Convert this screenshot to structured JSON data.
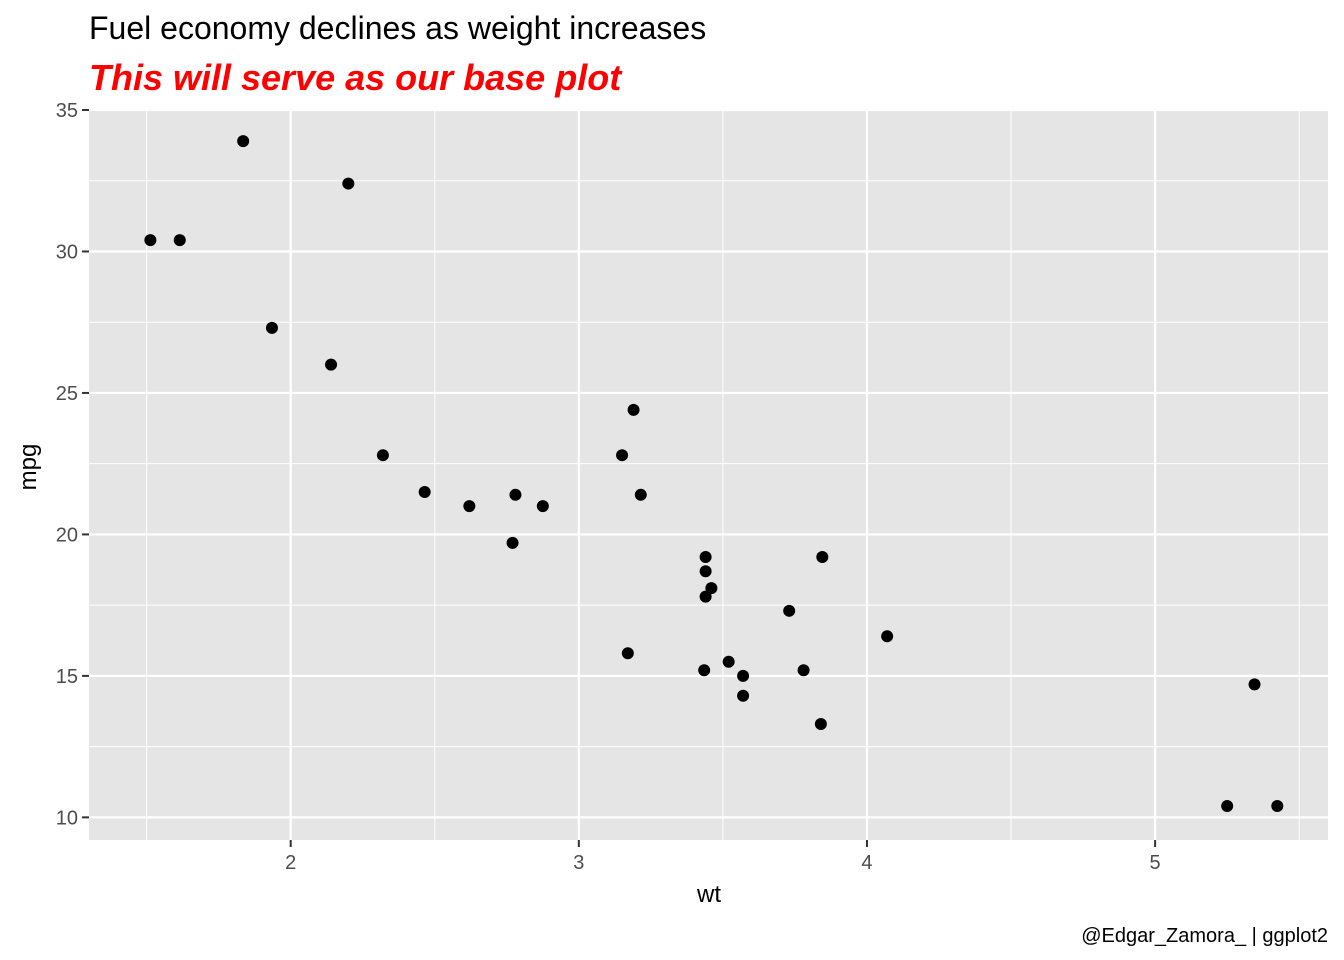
{
  "chart_data": {
    "type": "scatter",
    "title": "Fuel economy declines as weight increases",
    "subtitle": "This will serve as our base plot",
    "caption": "@Edgar_Zamora_ | ggplot2",
    "xlabel": "wt",
    "ylabel": "mpg",
    "xlim": [
      1.3,
      5.6
    ],
    "ylim": [
      9.2,
      35
    ],
    "x_ticks": [
      2,
      3,
      4,
      5
    ],
    "y_ticks": [
      10,
      15,
      20,
      25,
      30,
      35
    ],
    "x_minor": [
      1.5,
      2.5,
      3.5,
      4.5,
      5.5
    ],
    "y_minor": [
      12.5,
      17.5,
      22.5,
      27.5,
      32.5
    ],
    "grid": true,
    "colors": {
      "panel": "#e5e5e5",
      "grid": "#ffffff",
      "point": "#000000",
      "subtitle": "#ff0000",
      "tick": "#4d4d4d"
    },
    "points": [
      {
        "x": 2.62,
        "y": 21.0
      },
      {
        "x": 2.875,
        "y": 21.0
      },
      {
        "x": 2.32,
        "y": 22.8
      },
      {
        "x": 3.215,
        "y": 21.4
      },
      {
        "x": 3.44,
        "y": 18.7
      },
      {
        "x": 3.46,
        "y": 18.1
      },
      {
        "x": 3.57,
        "y": 14.3
      },
      {
        "x": 3.19,
        "y": 24.4
      },
      {
        "x": 3.15,
        "y": 22.8
      },
      {
        "x": 3.44,
        "y": 19.2
      },
      {
        "x": 3.44,
        "y": 17.8
      },
      {
        "x": 4.07,
        "y": 16.4
      },
      {
        "x": 3.73,
        "y": 17.3
      },
      {
        "x": 3.78,
        "y": 15.2
      },
      {
        "x": 5.25,
        "y": 10.4
      },
      {
        "x": 5.424,
        "y": 10.4
      },
      {
        "x": 5.345,
        "y": 14.7
      },
      {
        "x": 2.2,
        "y": 32.4
      },
      {
        "x": 1.615,
        "y": 30.4
      },
      {
        "x": 1.835,
        "y": 33.9
      },
      {
        "x": 2.465,
        "y": 21.5
      },
      {
        "x": 3.52,
        "y": 15.5
      },
      {
        "x": 3.435,
        "y": 15.2
      },
      {
        "x": 3.84,
        "y": 13.3
      },
      {
        "x": 3.845,
        "y": 19.2
      },
      {
        "x": 1.935,
        "y": 27.3
      },
      {
        "x": 2.14,
        "y": 26.0
      },
      {
        "x": 1.513,
        "y": 30.4
      },
      {
        "x": 3.17,
        "y": 15.8
      },
      {
        "x": 2.77,
        "y": 19.7
      },
      {
        "x": 3.57,
        "y": 15.0
      },
      {
        "x": 2.78,
        "y": 21.4
      }
    ]
  }
}
